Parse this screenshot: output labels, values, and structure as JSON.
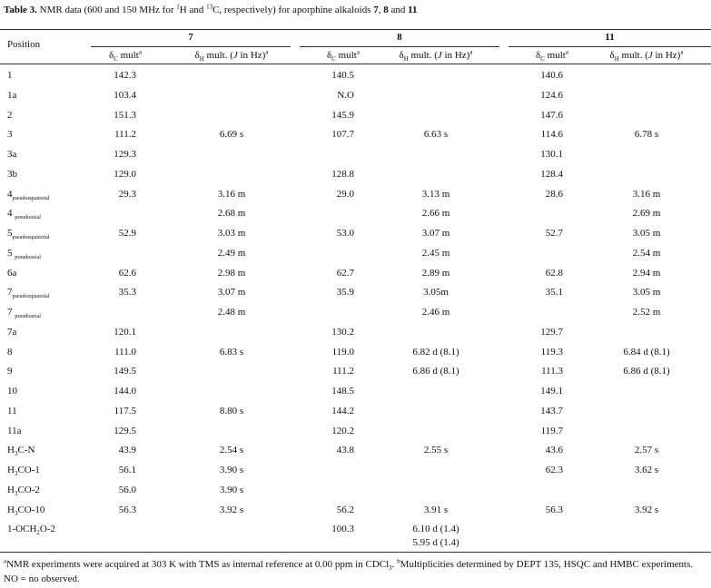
{
  "title": [
    "Table 3.",
    " NMR data (600 and 150 MHz for ",
    "1",
    "H and ",
    "13",
    "C, respectively) for aporphine alkaloids ",
    "7",
    ", ",
    "8",
    " and ",
    "11"
  ],
  "table": {
    "position_header": "Position",
    "compounds": [
      {
        "name": "7",
        "subheaders": [
          [
            "δ",
            "C",
            " mult",
            "a"
          ],
          [
            "δ",
            "H",
            " mult. (",
            "J",
            " in Hz)",
            "a"
          ]
        ]
      },
      {
        "name": "8",
        "subheaders": [
          [
            "δ",
            "C",
            " mult",
            "a"
          ],
          [
            "δ",
            "H",
            " mult. (",
            "J",
            " in Hz)",
            "a"
          ]
        ]
      },
      {
        "name": "11",
        "subheaders": [
          [
            "δ",
            "C",
            " mult",
            "a"
          ],
          [
            "δ",
            "H",
            " mult. (",
            "J",
            " in Hz)",
            "a"
          ]
        ]
      }
    ],
    "rows": [
      {
        "position": [
          "1"
        ],
        "cells": [
          "142.3",
          null,
          "140.5",
          null,
          "140.6",
          null
        ]
      },
      {
        "position": [
          "1a"
        ],
        "cells": [
          "103.4",
          null,
          "N.O",
          null,
          "124.6",
          null
        ]
      },
      {
        "position": [
          "2"
        ],
        "cells": [
          "151.3",
          null,
          "145.9",
          null,
          "147.6",
          null
        ]
      },
      {
        "position": [
          "3"
        ],
        "cells": [
          "111.2",
          "6.69 s",
          "107.7",
          "6.63 s",
          "114.6",
          "6.78 s"
        ]
      },
      {
        "position": [
          "3a"
        ],
        "cells": [
          "129.3",
          null,
          null,
          null,
          "130.1",
          null
        ]
      },
      {
        "position": [
          "3b"
        ],
        "cells": [
          "129.0",
          null,
          "128.8",
          null,
          "128.4",
          null
        ]
      },
      {
        "position": [
          "4",
          "pseudoequatorial"
        ],
        "cells": [
          "29.3",
          "3.16 m",
          "29.0",
          "3.13 m",
          "28.6",
          "3.16 m"
        ]
      },
      {
        "position": [
          "4 ",
          "pseudoaxial"
        ],
        "cells": [
          null,
          "2.68 m",
          null,
          "2.66 m",
          null,
          "2.69 m"
        ]
      },
      {
        "position": [
          "5",
          "pseudoequatorial"
        ],
        "cells": [
          "52.9",
          "3.03 m",
          "53.0",
          "3.07 m",
          "52.7",
          "3.05 m"
        ]
      },
      {
        "position": [
          "5 ",
          "pseudoaxial"
        ],
        "cells": [
          null,
          "2.49 m",
          null,
          "2.45 m",
          null,
          "2.54 m"
        ]
      },
      {
        "position": [
          "6a"
        ],
        "cells": [
          "62.6",
          "2.98 m",
          "62.7",
          "2.89 m",
          "62.8",
          "2.94 m"
        ]
      },
      {
        "position": [
          "7",
          "pseudoequatorial"
        ],
        "cells": [
          "35.3",
          "3.07 m",
          "35.9",
          "3.05m",
          "35.1",
          "3.05 m"
        ]
      },
      {
        "position": [
          "7 ",
          "pseudoaxial"
        ],
        "cells": [
          null,
          "2.48 m",
          null,
          "2.46 m",
          null,
          "2.52 m"
        ]
      },
      {
        "position": [
          "7a"
        ],
        "cells": [
          "120.1",
          null,
          "130.2",
          null,
          "129.7",
          null
        ]
      },
      {
        "position": [
          "8"
        ],
        "cells": [
          "111.0",
          "6.83 s",
          "119.0",
          "6.82 d (8.1)",
          "119.3",
          "6.84 d (8.1)"
        ]
      },
      {
        "position": [
          "9"
        ],
        "cells": [
          "149.5",
          null,
          "111.2",
          "6.86 d (8.1)",
          "111.3",
          "6.86 d (8.1)"
        ]
      },
      {
        "position": [
          "10"
        ],
        "cells": [
          "144.0",
          null,
          "148.5",
          null,
          "149.1",
          null
        ]
      },
      {
        "position": [
          "11"
        ],
        "cells": [
          "117.5",
          "8.80 s",
          "144.2",
          null,
          "143.7",
          null
        ]
      },
      {
        "position": [
          "11a"
        ],
        "cells": [
          "129.5",
          null,
          "120.2",
          null,
          "119.7",
          null
        ]
      },
      {
        "position": [
          "H",
          "3",
          "C-N"
        ],
        "cells": [
          "43.9",
          "2.54 s",
          "43.8",
          "2.55 s",
          "43.6",
          "2.57 s"
        ]
      },
      {
        "position": [
          "H",
          "3",
          "CO-1"
        ],
        "cells": [
          "56.1",
          "3.90 s",
          null,
          null,
          "62.3",
          "3.62 s"
        ]
      },
      {
        "position": [
          "H",
          "3",
          "CO-2"
        ],
        "cells": [
          "56.0",
          "3.90 s",
          null,
          null,
          null,
          null
        ]
      },
      {
        "position": [
          "H",
          "3",
          "CO-10"
        ],
        "cells": [
          "56.3",
          "3.92 s",
          "56.2",
          "3.91 s",
          "56.3",
          "3.92 s"
        ]
      },
      {
        "position": [
          "1-OCH",
          "2",
          "O-2"
        ],
        "cells": [
          null,
          null,
          "100.3",
          [
            "6.10 d (1.4)",
            "5.95 d (1.4)"
          ],
          null,
          null
        ]
      }
    ]
  },
  "footnote": [
    "a",
    "NMR experiments were acquired at 303 K with TMS as internal reference at 0.00 ppm in CDCl",
    "3",
    ". ",
    "b",
    "Multiplicities determined by DEPT 135, HSQC and HMBC experiments. NO = no observed."
  ]
}
